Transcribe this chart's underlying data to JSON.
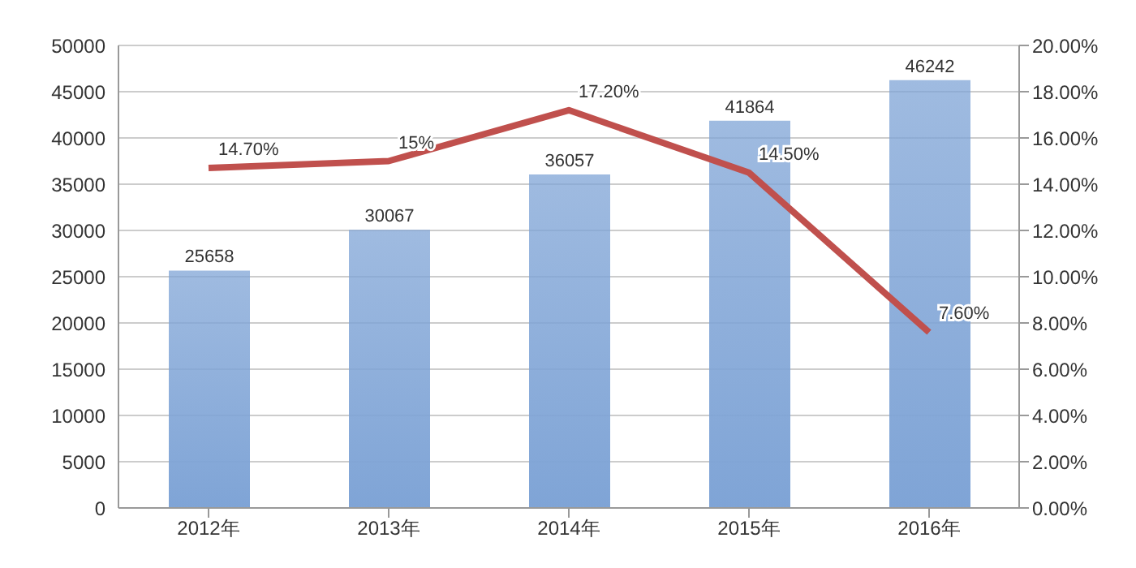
{
  "chart_data": {
    "type": "bar",
    "categories": [
      "2012年",
      "2013年",
      "2014年",
      "2015年",
      "2016年"
    ],
    "series": [
      {
        "color": "#7fa4d6",
        "values": [
          25658,
          30067,
          36057,
          41864,
          46242
        ],
        "data_labels": true
      },
      {
        "type": "line",
        "axis": "y2",
        "color": "#c0504d",
        "values": [
          14.7,
          15,
          17.2,
          14.5,
          7.6
        ],
        "value_labels": [
          "14.70%",
          "15%",
          "17.20%",
          "14.50%",
          "7.60%"
        ]
      }
    ],
    "ylim": [
      0,
      50000
    ],
    "yticks": [
      0,
      5000,
      10000,
      15000,
      20000,
      25000,
      30000,
      35000,
      40000,
      45000,
      50000
    ],
    "y2lim": [
      0,
      20
    ],
    "y2ticks": [
      {
        "value": 0,
        "label": "0.00%"
      },
      {
        "value": 2,
        "label": "2.00%"
      },
      {
        "value": 4,
        "label": "4.00%"
      },
      {
        "value": 6,
        "label": "6.00%"
      },
      {
        "value": 8,
        "label": "8.00%"
      },
      {
        "value": 10,
        "label": "10.00%"
      },
      {
        "value": 12,
        "label": "12.00%"
      },
      {
        "value": 14,
        "label": "14.00%"
      },
      {
        "value": 16,
        "label": "16.00%"
      },
      {
        "value": 18,
        "label": "18.00%"
      },
      {
        "value": 20,
        "label": "20.00%"
      }
    ],
    "grid": "y",
    "legend": false,
    "marker": "none",
    "line_style": "solid"
  }
}
